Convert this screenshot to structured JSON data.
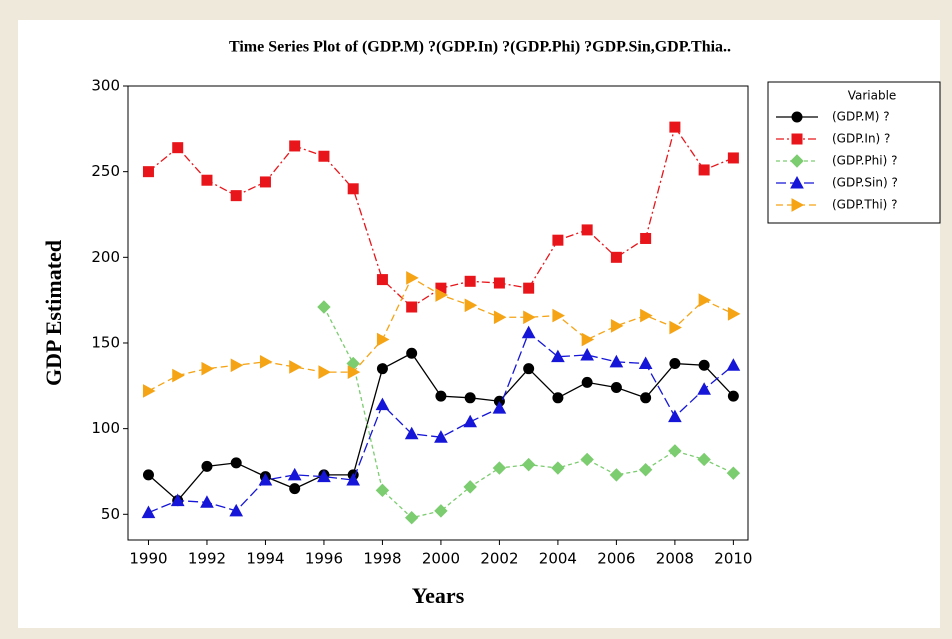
{
  "chart_data": {
    "type": "line",
    "title": "Time Series Plot of (GDP.M) ?(GDP.In) ?(GDP.Phi) ?GDP.Sin,GDP.Thia..",
    "x_label": "Years",
    "y_label": "GDP Estimated",
    "legend_title": "Variable",
    "x": [
      1990,
      1991,
      1992,
      1993,
      1994,
      1995,
      1996,
      1997,
      1998,
      1999,
      2000,
      2001,
      2002,
      2003,
      2004,
      2005,
      2006,
      2007,
      2008,
      2009,
      2010
    ],
    "xlim": [
      1989.3,
      2010.5
    ],
    "xticks": [
      1990,
      1992,
      1994,
      1996,
      1998,
      2000,
      2002,
      2004,
      2006,
      2008,
      2010
    ],
    "ylim": [
      35,
      300
    ],
    "yticks": [
      50,
      100,
      150,
      200,
      250,
      300
    ],
    "series": [
      {
        "name": "(GDP.M) ?",
        "color": "#000000",
        "marker": "circle",
        "dash": "",
        "values": [
          73,
          58,
          78,
          80,
          72,
          65,
          73,
          73,
          135,
          144,
          119,
          118,
          116,
          135,
          118,
          127,
          124,
          118,
          138,
          137,
          119
        ]
      },
      {
        "name": "(GDP.In) ?",
        "color": "#e8161b",
        "marker": "square",
        "dash": "8,3,2,3",
        "values": [
          250,
          264,
          245,
          236,
          244,
          265,
          259,
          240,
          187,
          171,
          182,
          186,
          185,
          182,
          210,
          216,
          200,
          211,
          276,
          251,
          258
        ]
      },
      {
        "name": "(GDP.Phi) ?",
        "color": "#7ccc70",
        "marker": "diamond",
        "dash": "4,3",
        "values": [
          null,
          null,
          null,
          null,
          null,
          null,
          171,
          138,
          64,
          48,
          52,
          66,
          77,
          79,
          77,
          82,
          73,
          76,
          87,
          82,
          74
        ]
      },
      {
        "name": "(GDP.Sin) ?",
        "color": "#1616d8",
        "marker": "triangle",
        "dash": "10,4",
        "values": [
          51,
          58,
          57,
          52,
          70,
          73,
          72,
          70,
          114,
          97,
          95,
          104,
          112,
          156,
          142,
          143,
          139,
          138,
          107,
          123,
          137
        ]
      },
      {
        "name": "(GDP.Thi) ?",
        "color": "#f5a416",
        "marker": "triangle-right",
        "dash": "7,4",
        "values": [
          122,
          131,
          135,
          137,
          139,
          136,
          133,
          133,
          152,
          188,
          178,
          172,
          165,
          165,
          166,
          152,
          160,
          166,
          159,
          175,
          167
        ]
      }
    ]
  }
}
